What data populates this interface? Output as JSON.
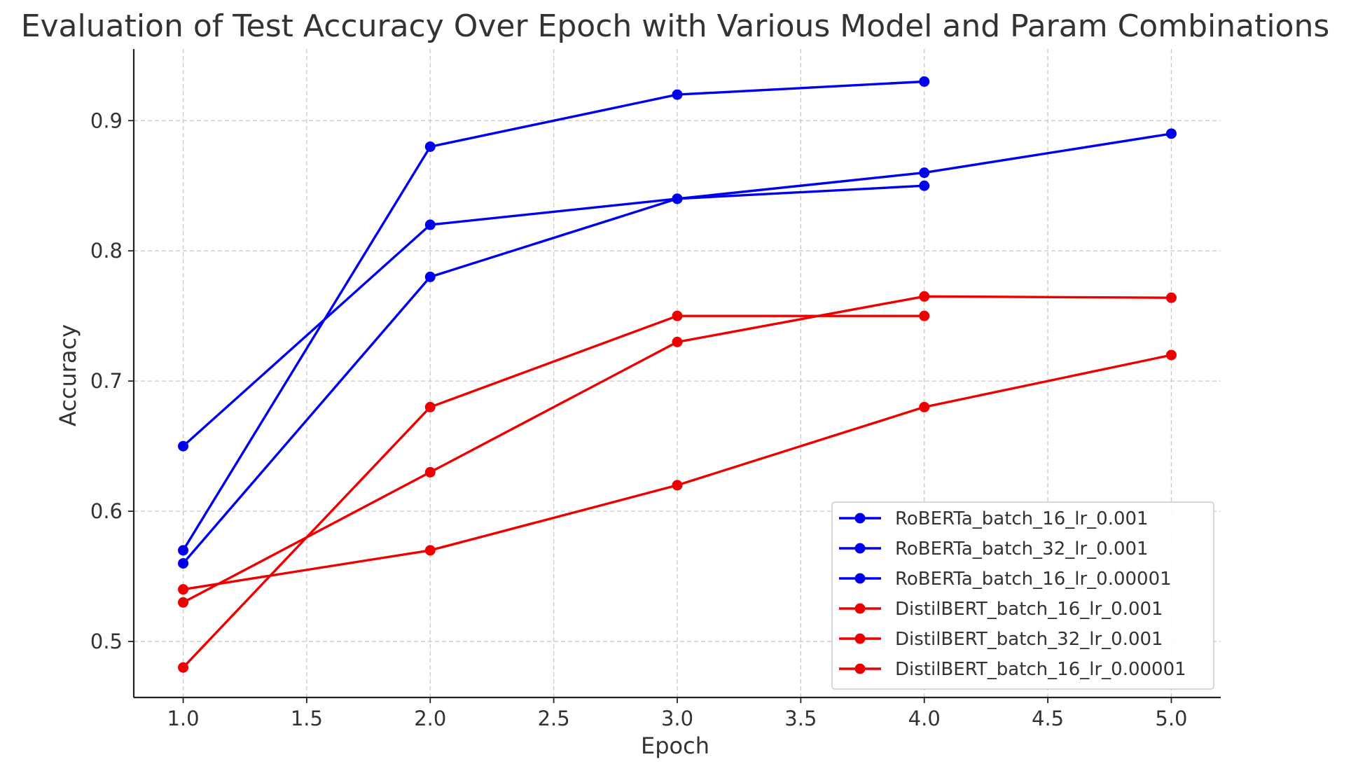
{
  "chart_data": {
    "type": "line",
    "title": "Evaluation of Test Accuracy Over Epoch with Various Model and Param Combinations",
    "xlabel": "Epoch",
    "ylabel": "Accuracy",
    "xlim": [
      0.8,
      5.2
    ],
    "ylim": [
      0.457,
      0.955
    ],
    "xticks": [
      1.0,
      1.5,
      2.0,
      2.5,
      3.0,
      3.5,
      4.0,
      4.5,
      5.0
    ],
    "xtick_labels": [
      "1.0",
      "1.5",
      "2.0",
      "2.5",
      "3.0",
      "3.5",
      "4.0",
      "4.5",
      "5.0"
    ],
    "yticks": [
      0.5,
      0.6,
      0.7,
      0.8,
      0.9
    ],
    "ytick_labels": [
      "0.5",
      "0.6",
      "0.7",
      "0.8",
      "0.9"
    ],
    "grid": true,
    "legend_position": "lower-right",
    "series": [
      {
        "name": "RoBERTa_batch_16_lr_0.001",
        "color": "#0000ee",
        "x": [
          1,
          2,
          3,
          4
        ],
        "values": [
          0.57,
          0.88,
          0.92,
          0.93
        ]
      },
      {
        "name": "RoBERTa_batch_32_lr_0.001",
        "color": "#0000ee",
        "x": [
          1,
          2,
          3,
          4
        ],
        "values": [
          0.56,
          0.78,
          0.84,
          0.85
        ]
      },
      {
        "name": "RoBERTa_batch_16_lr_0.00001",
        "color": "#0000ee",
        "x": [
          1,
          2,
          3,
          4,
          5
        ],
        "values": [
          0.65,
          0.82,
          0.84,
          0.86,
          0.89
        ]
      },
      {
        "name": "DistilBERT_batch_16_lr_0.001",
        "color": "#ee0000",
        "x": [
          1,
          2,
          3,
          4
        ],
        "values": [
          0.48,
          0.68,
          0.75,
          0.75
        ]
      },
      {
        "name": "DistilBERT_batch_32_lr_0.001",
        "color": "#ee0000",
        "x": [
          1,
          2,
          3,
          4,
          5
        ],
        "values": [
          0.53,
          0.63,
          0.73,
          0.765,
          0.764
        ]
      },
      {
        "name": "DistilBERT_batch_16_lr_0.00001",
        "color": "#ee0000",
        "x": [
          1,
          2,
          3,
          4,
          5
        ],
        "values": [
          0.54,
          0.57,
          0.62,
          0.68,
          0.72
        ]
      }
    ]
  }
}
